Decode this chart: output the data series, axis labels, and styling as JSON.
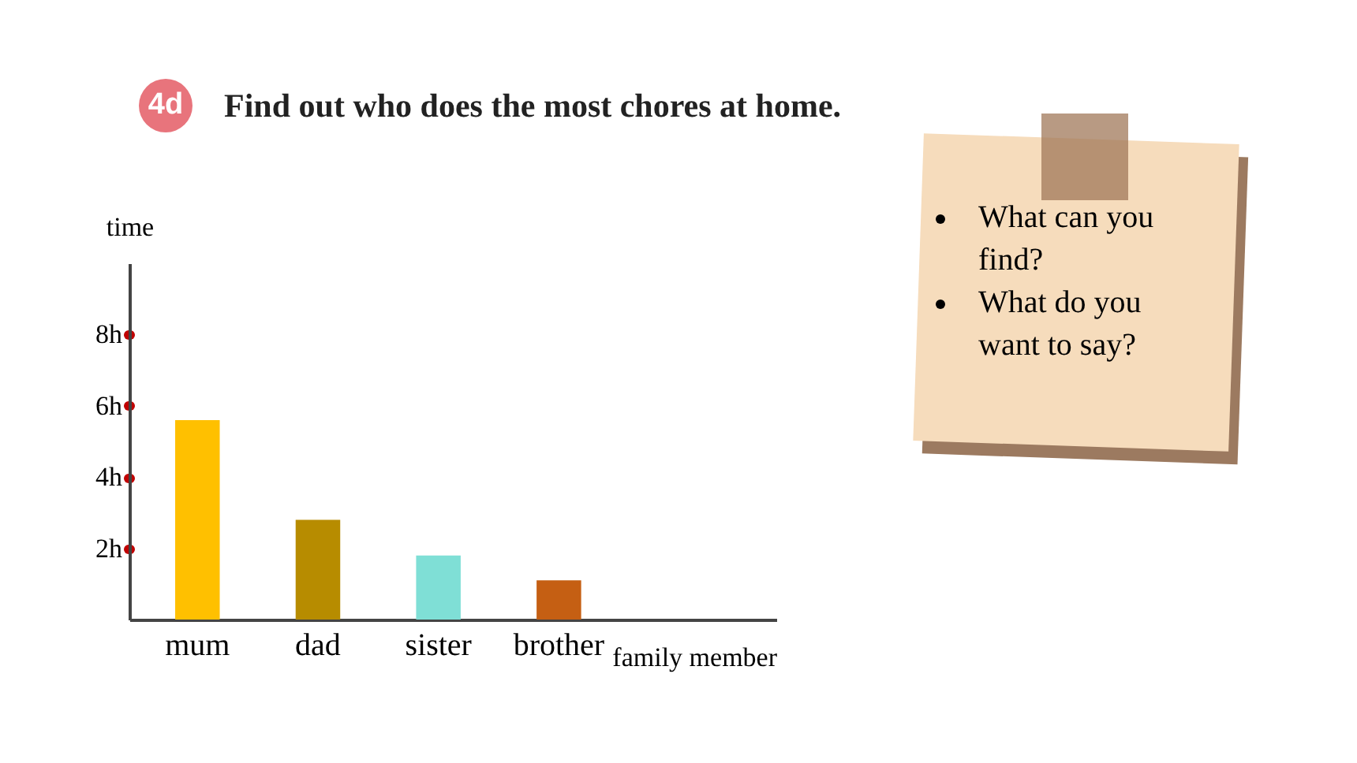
{
  "chart_data": {
    "type": "bar",
    "title": "Find out who does the most chores at home.",
    "xlabel": "family member",
    "ylabel": "time",
    "categories": [
      "mum",
      "dad",
      "sister",
      "brother"
    ],
    "values": [
      5.6,
      2.8,
      1.8,
      1.1
    ],
    "colors": [
      "#ffc000",
      "#b78c00",
      "#7fdfd6",
      "#c55f13"
    ],
    "ylim": [
      0,
      10
    ],
    "yticks": [
      {
        "value": 2,
        "label": "2h"
      },
      {
        "value": 4,
        "label": "4h"
      },
      {
        "value": 6,
        "label": "6h"
      },
      {
        "value": 8,
        "label": "8h"
      }
    ],
    "grid": false,
    "legend": false,
    "annotations": [
      "4d",
      "What can you find?",
      "What do you want to say?"
    ]
  }
}
